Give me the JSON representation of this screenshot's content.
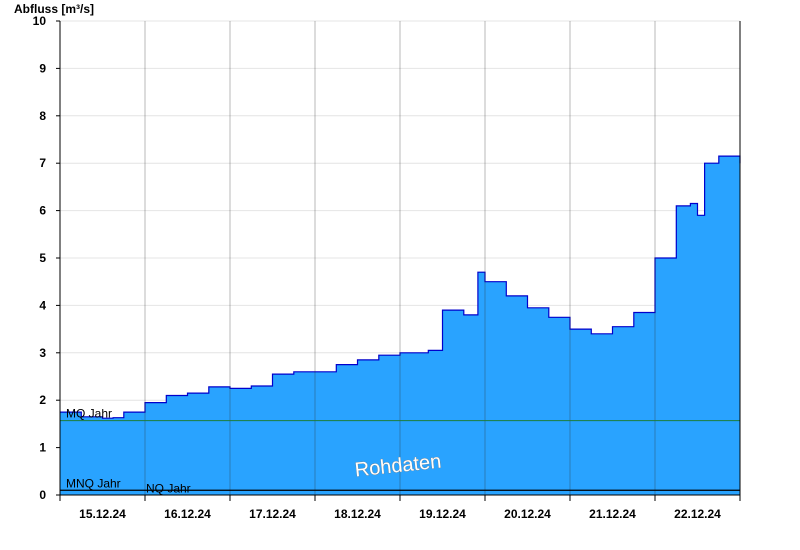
{
  "chart_data": {
    "type": "area",
    "ylabel": "Abfluss [m³/s]",
    "ylim": [
      0,
      10
    ],
    "yticks": [
      0,
      1,
      2,
      3,
      4,
      5,
      6,
      7,
      8,
      9,
      10
    ],
    "xlim": [
      "15.12.24 00:00",
      "22.12.24 24:00"
    ],
    "xticks": [
      "15.12.24",
      "16.12.24",
      "17.12.24",
      "18.12.24",
      "19.12.24",
      "20.12.24",
      "21.12.24",
      "22.12.24"
    ],
    "grid": true,
    "fill_color": "#29a3ff",
    "line_color": "#0000cc",
    "watermark": "Rohdaten",
    "reference_lines": [
      {
        "label": "MQ Jahr",
        "value": 1.57,
        "color": "#1e7d3a"
      },
      {
        "label": "MNQ Jahr",
        "value": 0.1,
        "color": "#000000"
      },
      {
        "label": "NQ Jahr",
        "value": 0.1,
        "color": "#000000"
      }
    ],
    "series": [
      {
        "x": [
          "15.12.24 00:00",
          "15.12.24 06:00",
          "15.12.24 12:00",
          "15.12.24 15:00",
          "15.12.24 18:00",
          "16.12.24 00:00",
          "16.12.24 06:00",
          "16.12.24 12:00",
          "16.12.24 18:00",
          "17.12.24 00:00",
          "17.12.24 06:00",
          "17.12.24 12:00",
          "17.12.24 18:00",
          "18.12.24 00:00",
          "18.12.24 06:00",
          "18.12.24 12:00",
          "18.12.24 18:00",
          "19.12.24 00:00",
          "19.12.24 06:00",
          "19.12.24 08:00",
          "19.12.24 12:00",
          "19.12.24 18:00",
          "19.12.24 22:00",
          "20.12.24 00:00",
          "20.12.24 06:00",
          "20.12.24 12:00",
          "20.12.24 18:00",
          "21.12.24 00:00",
          "21.12.24 06:00",
          "21.12.24 12:00",
          "21.12.24 18:00",
          "22.12.24 00:00",
          "22.12.24 06:00",
          "22.12.24 10:00",
          "22.12.24 12:00",
          "22.12.24 14:00",
          "22.12.24 18:00",
          "22.12.24 24:00"
        ],
        "values": [
          1.75,
          1.65,
          1.62,
          1.63,
          1.75,
          1.95,
          2.1,
          2.15,
          2.28,
          2.25,
          2.3,
          2.55,
          2.6,
          2.6,
          2.75,
          2.85,
          2.95,
          3.0,
          3.0,
          3.05,
          3.9,
          3.8,
          4.7,
          4.5,
          4.2,
          3.95,
          3.75,
          3.5,
          3.4,
          3.55,
          3.85,
          5.0,
          6.1,
          6.15,
          5.9,
          7.0,
          7.15,
          7.0
        ]
      }
    ]
  }
}
